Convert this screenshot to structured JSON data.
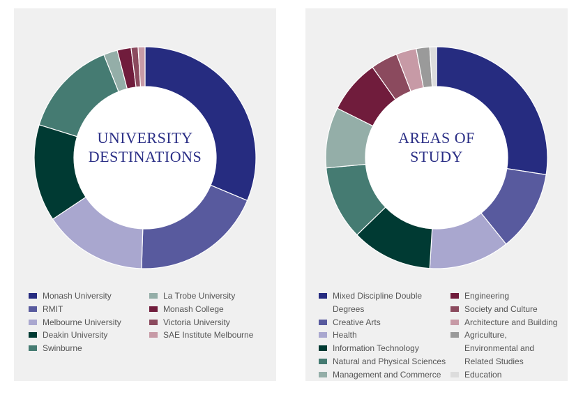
{
  "chart_data": [
    {
      "type": "pie",
      "title": "UNIVERSITY DESTINATIONS",
      "categories": [
        "Monash University",
        "RMIT",
        "Melbourne University",
        "Deakin University",
        "Swinburne",
        "La Trobe University",
        "Monash College",
        "Victoria University",
        "SAE Institute Melbourne"
      ],
      "values": [
        31,
        19,
        15,
        14,
        14,
        2,
        2,
        1,
        1
      ],
      "colors": [
        "#262c80",
        "#585a9e",
        "#a9a7cf",
        "#003a33",
        "#457b72",
        "#94aea8",
        "#701c3c",
        "#8b4a5e",
        "#c79aa6"
      ],
      "legend_columns": [
        [
          0,
          1,
          2,
          3,
          4
        ],
        [
          5,
          6,
          7,
          8
        ]
      ]
    },
    {
      "type": "pie",
      "title": "AREAS OF STUDY",
      "categories": [
        "Mixed Discipline Double Degrees",
        "Creative Arts",
        "Health",
        "Information Technology",
        "Natural and Physical Sciences",
        "Management and Commerce",
        "Engineering",
        "Society and Culture",
        "Architecture and Building",
        "Agriculture, Environmental and Related Studies",
        "Education"
      ],
      "values": [
        28,
        12,
        12,
        12,
        11,
        9,
        8,
        4,
        3,
        2,
        1
      ],
      "colors": [
        "#262c80",
        "#585a9e",
        "#a9a7cf",
        "#003a33",
        "#457b72",
        "#94aea8",
        "#701c3c",
        "#8b4a5e",
        "#c79aa6",
        "#9a9a9a",
        "#dcdcdc"
      ],
      "legend_columns": [
        [
          0,
          1,
          2,
          3,
          4,
          5
        ],
        [
          6,
          7,
          8,
          9,
          10
        ]
      ]
    }
  ]
}
